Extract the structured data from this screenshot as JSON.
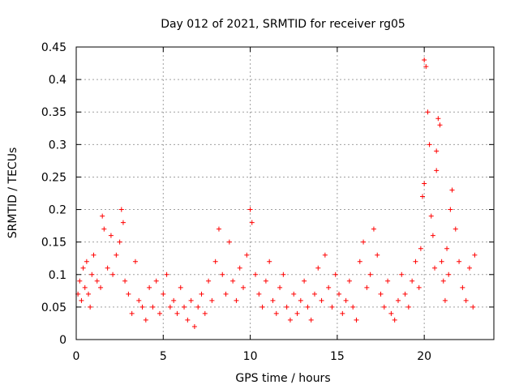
{
  "chart_data": {
    "type": "scatter",
    "title": "Day 012 of 2021, SRMTID for receiver rg05",
    "xlabel": "GPS time / hours",
    "ylabel": "SRMTID / TECUs",
    "xlim": [
      0,
      24
    ],
    "ylim": [
      0,
      0.45
    ],
    "x_ticks": [
      0,
      5,
      10,
      15,
      20
    ],
    "x_tick_labels": [
      "0",
      "5",
      "10",
      "15",
      "20"
    ],
    "y_ticks": [
      0,
      0.05,
      0.1,
      0.15,
      0.2,
      0.25,
      0.3,
      0.35,
      0.4,
      0.45
    ],
    "y_tick_labels": [
      "0",
      "0.05",
      "0.1",
      "0.15",
      "0.2",
      "0.25",
      "0.3",
      "0.35",
      "0.4",
      "0.45"
    ],
    "grid": true,
    "marker": "+",
    "marker_color": "#ff0000",
    "series": [
      {
        "name": "SRMTID",
        "x": [
          0.1,
          0.2,
          0.3,
          0.4,
          0.5,
          0.6,
          0.7,
          0.8,
          0.9,
          1.0,
          1.2,
          1.4,
          1.5,
          1.6,
          1.8,
          2.0,
          2.1,
          2.3,
          2.5,
          2.6,
          2.7,
          2.8,
          3.0,
          3.2,
          3.4,
          3.6,
          3.8,
          4.0,
          4.2,
          4.4,
          4.6,
          4.8,
          5.0,
          5.2,
          5.4,
          5.6,
          5.8,
          6.0,
          6.2,
          6.4,
          6.6,
          6.8,
          7.0,
          7.2,
          7.4,
          7.6,
          7.8,
          8.0,
          8.2,
          8.4,
          8.6,
          8.8,
          9.0,
          9.2,
          9.4,
          9.6,
          9.8,
          10.0,
          10.1,
          10.3,
          10.5,
          10.7,
          10.9,
          11.1,
          11.3,
          11.5,
          11.7,
          11.9,
          12.1,
          12.3,
          12.5,
          12.7,
          12.9,
          13.1,
          13.3,
          13.5,
          13.7,
          13.9,
          14.1,
          14.3,
          14.5,
          14.7,
          14.9,
          15.1,
          15.3,
          15.5,
          15.7,
          15.9,
          16.1,
          16.3,
          16.5,
          16.7,
          16.9,
          17.1,
          17.3,
          17.5,
          17.7,
          17.9,
          18.1,
          18.3,
          18.5,
          18.7,
          18.9,
          19.1,
          19.3,
          19.5,
          19.7,
          19.8,
          19.9,
          20.0,
          20.0,
          20.1,
          20.2,
          20.3,
          20.4,
          20.5,
          20.6,
          20.7,
          20.7,
          20.8,
          20.9,
          21.0,
          21.1,
          21.2,
          21.3,
          21.4,
          21.5,
          21.6,
          21.8,
          22.0,
          22.2,
          22.4,
          22.6,
          22.8,
          22.9
        ],
        "y": [
          0.07,
          0.09,
          0.06,
          0.11,
          0.08,
          0.12,
          0.07,
          0.05,
          0.1,
          0.13,
          0.09,
          0.08,
          0.19,
          0.17,
          0.11,
          0.16,
          0.1,
          0.13,
          0.15,
          0.2,
          0.18,
          0.09,
          0.07,
          0.04,
          0.12,
          0.06,
          0.05,
          0.03,
          0.08,
          0.05,
          0.09,
          0.04,
          0.07,
          0.1,
          0.05,
          0.06,
          0.04,
          0.08,
          0.05,
          0.03,
          0.06,
          0.02,
          0.05,
          0.07,
          0.04,
          0.09,
          0.06,
          0.12,
          0.17,
          0.1,
          0.07,
          0.15,
          0.09,
          0.06,
          0.11,
          0.08,
          0.13,
          0.2,
          0.18,
          0.1,
          0.07,
          0.05,
          0.09,
          0.12,
          0.06,
          0.04,
          0.08,
          0.1,
          0.05,
          0.03,
          0.07,
          0.04,
          0.06,
          0.09,
          0.05,
          0.03,
          0.07,
          0.11,
          0.06,
          0.13,
          0.08,
          0.05,
          0.1,
          0.07,
          0.04,
          0.06,
          0.09,
          0.05,
          0.03,
          0.12,
          0.15,
          0.08,
          0.1,
          0.17,
          0.13,
          0.07,
          0.05,
          0.09,
          0.04,
          0.03,
          0.06,
          0.1,
          0.07,
          0.05,
          0.09,
          0.12,
          0.08,
          0.14,
          0.22,
          0.24,
          0.43,
          0.42,
          0.35,
          0.3,
          0.19,
          0.16,
          0.11,
          0.26,
          0.29,
          0.34,
          0.33,
          0.12,
          0.09,
          0.06,
          0.14,
          0.1,
          0.2,
          0.23,
          0.17,
          0.12,
          0.08,
          0.06,
          0.11,
          0.05,
          0.13
        ]
      }
    ]
  }
}
